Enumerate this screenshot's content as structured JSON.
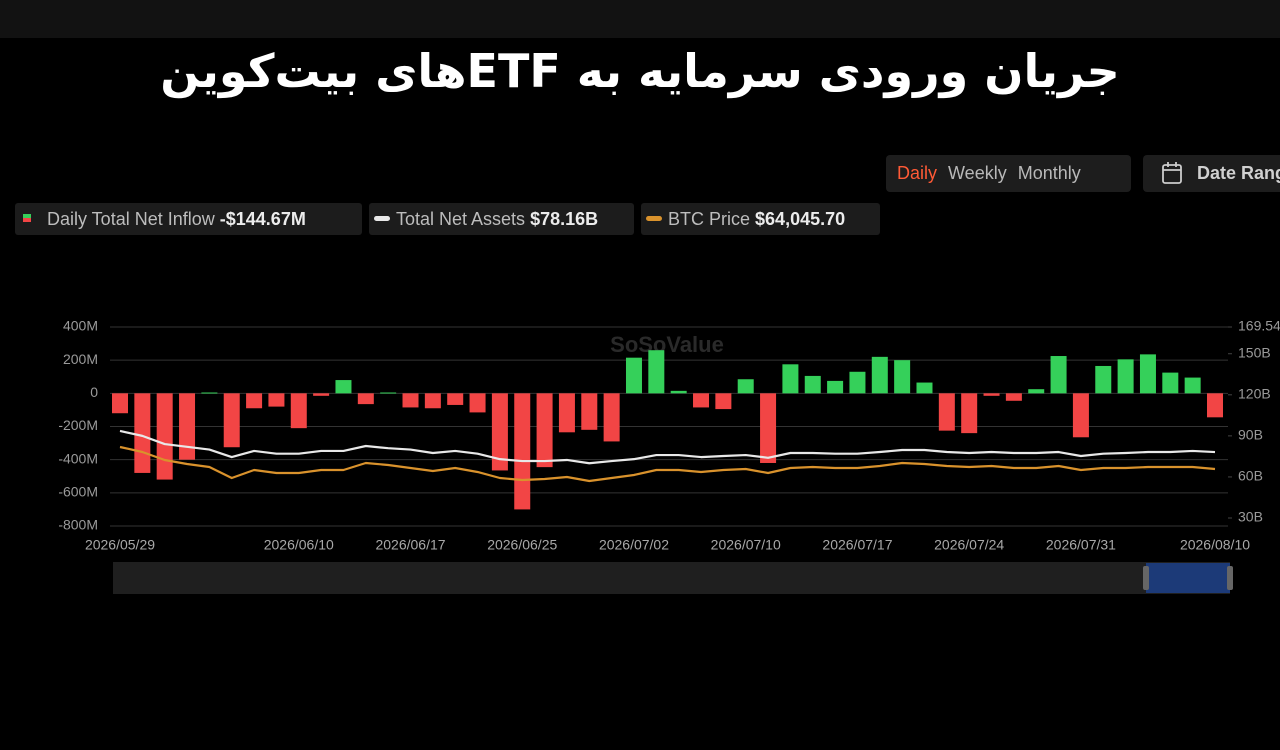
{
  "header": {
    "title": "جریان ورودی سرمایه به ETFهای بیت‌کوین"
  },
  "controls": {
    "periods": [
      "Daily",
      "Weekly",
      "Monthly"
    ],
    "active_period": 0,
    "date_range": "Date Range"
  },
  "chart_data": {
    "type": "combo",
    "watermark": "SoSoValue",
    "categories": [
      "2026/05/29",
      null,
      null,
      null,
      null,
      null,
      null,
      null,
      "2026/06/10",
      null,
      null,
      null,
      null,
      "2026/06/17",
      null,
      null,
      null,
      null,
      "2026/06/25",
      null,
      null,
      null,
      null,
      "2026/07/02",
      null,
      null,
      null,
      null,
      "2026/07/10",
      null,
      null,
      null,
      null,
      "2026/07/17",
      null,
      null,
      null,
      null,
      "2026/07/24",
      null,
      null,
      null,
      null,
      "2026/07/31",
      null,
      null,
      null,
      null,
      null,
      "2026/08/10"
    ],
    "series": [
      {
        "name": "Daily Total Net Inflow",
        "type": "bar",
        "legend_value": "-$144.67M",
        "positive_color": "#35d05a",
        "negative_color": "#f24545",
        "values": [
          -120,
          -480,
          -520,
          -400,
          5,
          -325,
          -90,
          -80,
          -210,
          -15,
          80,
          -65,
          5,
          -85,
          -90,
          -70,
          -115,
          -465,
          -700,
          -445,
          -235,
          -220,
          -290,
          215,
          260,
          15,
          -85,
          -95,
          85,
          -420,
          175,
          105,
          75,
          130,
          220,
          200,
          65,
          -225,
          -240,
          -15,
          -45,
          25,
          225,
          -265,
          165,
          205,
          235,
          125,
          95,
          -144.67
        ]
      },
      {
        "name": "Total Net Assets",
        "type": "line",
        "axis": "y2",
        "color": "#e8e8e8",
        "legend_value": "$78.16B",
        "values": [
          93.6,
          90,
          84,
          82,
          80,
          74.5,
          79,
          77,
          77,
          79,
          79,
          82.6,
          81,
          80,
          77.5,
          79,
          77,
          73,
          71.6,
          71.6,
          72.4,
          70,
          71.6,
          73,
          76,
          76,
          74.5,
          75.3,
          76,
          74,
          77.5,
          77.5,
          77,
          77,
          78.2,
          79.7,
          79.7,
          78.2,
          77.5,
          78.2,
          77.5,
          77.5,
          78.2,
          75.3,
          77,
          77.5,
          78.2,
          78.2,
          79,
          78.16
        ]
      },
      {
        "name": "BTC Price",
        "type": "line",
        "axis": "y3",
        "color": "#d9922c",
        "legend_value": "$64,045.70",
        "values": [
          73350,
          71240,
          67860,
          66170,
          64900,
          60260,
          63640,
          62370,
          62370,
          63640,
          63640,
          66590,
          65750,
          64480,
          63220,
          64480,
          62800,
          60260,
          59420,
          59840,
          60680,
          58990,
          60260,
          61530,
          63640,
          63640,
          62800,
          63640,
          64060,
          62370,
          64480,
          64900,
          64480,
          64480,
          65330,
          66590,
          66170,
          65330,
          64900,
          65330,
          64480,
          64480,
          65330,
          63640,
          64480,
          64480,
          64900,
          64900,
          64900,
          64045.7
        ]
      }
    ],
    "ylim": [
      -800,
      400
    ],
    "yticks": [
      {
        "value": -800,
        "label": "-800M"
      },
      {
        "value": -600,
        "label": "-600M"
      },
      {
        "value": -400,
        "label": "-400M"
      },
      {
        "value": -200,
        "label": "-200M"
      },
      0,
      {
        "value": 200,
        "label": "200M"
      },
      {
        "value": 400,
        "label": "400M"
      }
    ],
    "y2lim": [
      24.16,
      169.54
    ],
    "y2ticks": [
      {
        "value": 30,
        "label": "30B"
      },
      {
        "value": 60,
        "label": "60B"
      },
      {
        "value": 90,
        "label": "90B"
      },
      {
        "value": 120,
        "label": "120B"
      },
      {
        "value": 150,
        "label": "150B"
      },
      {
        "value": 169.54,
        "label": "169.54"
      }
    ],
    "y3lim": [
      40000,
      124000
    ],
    "grid": true
  }
}
